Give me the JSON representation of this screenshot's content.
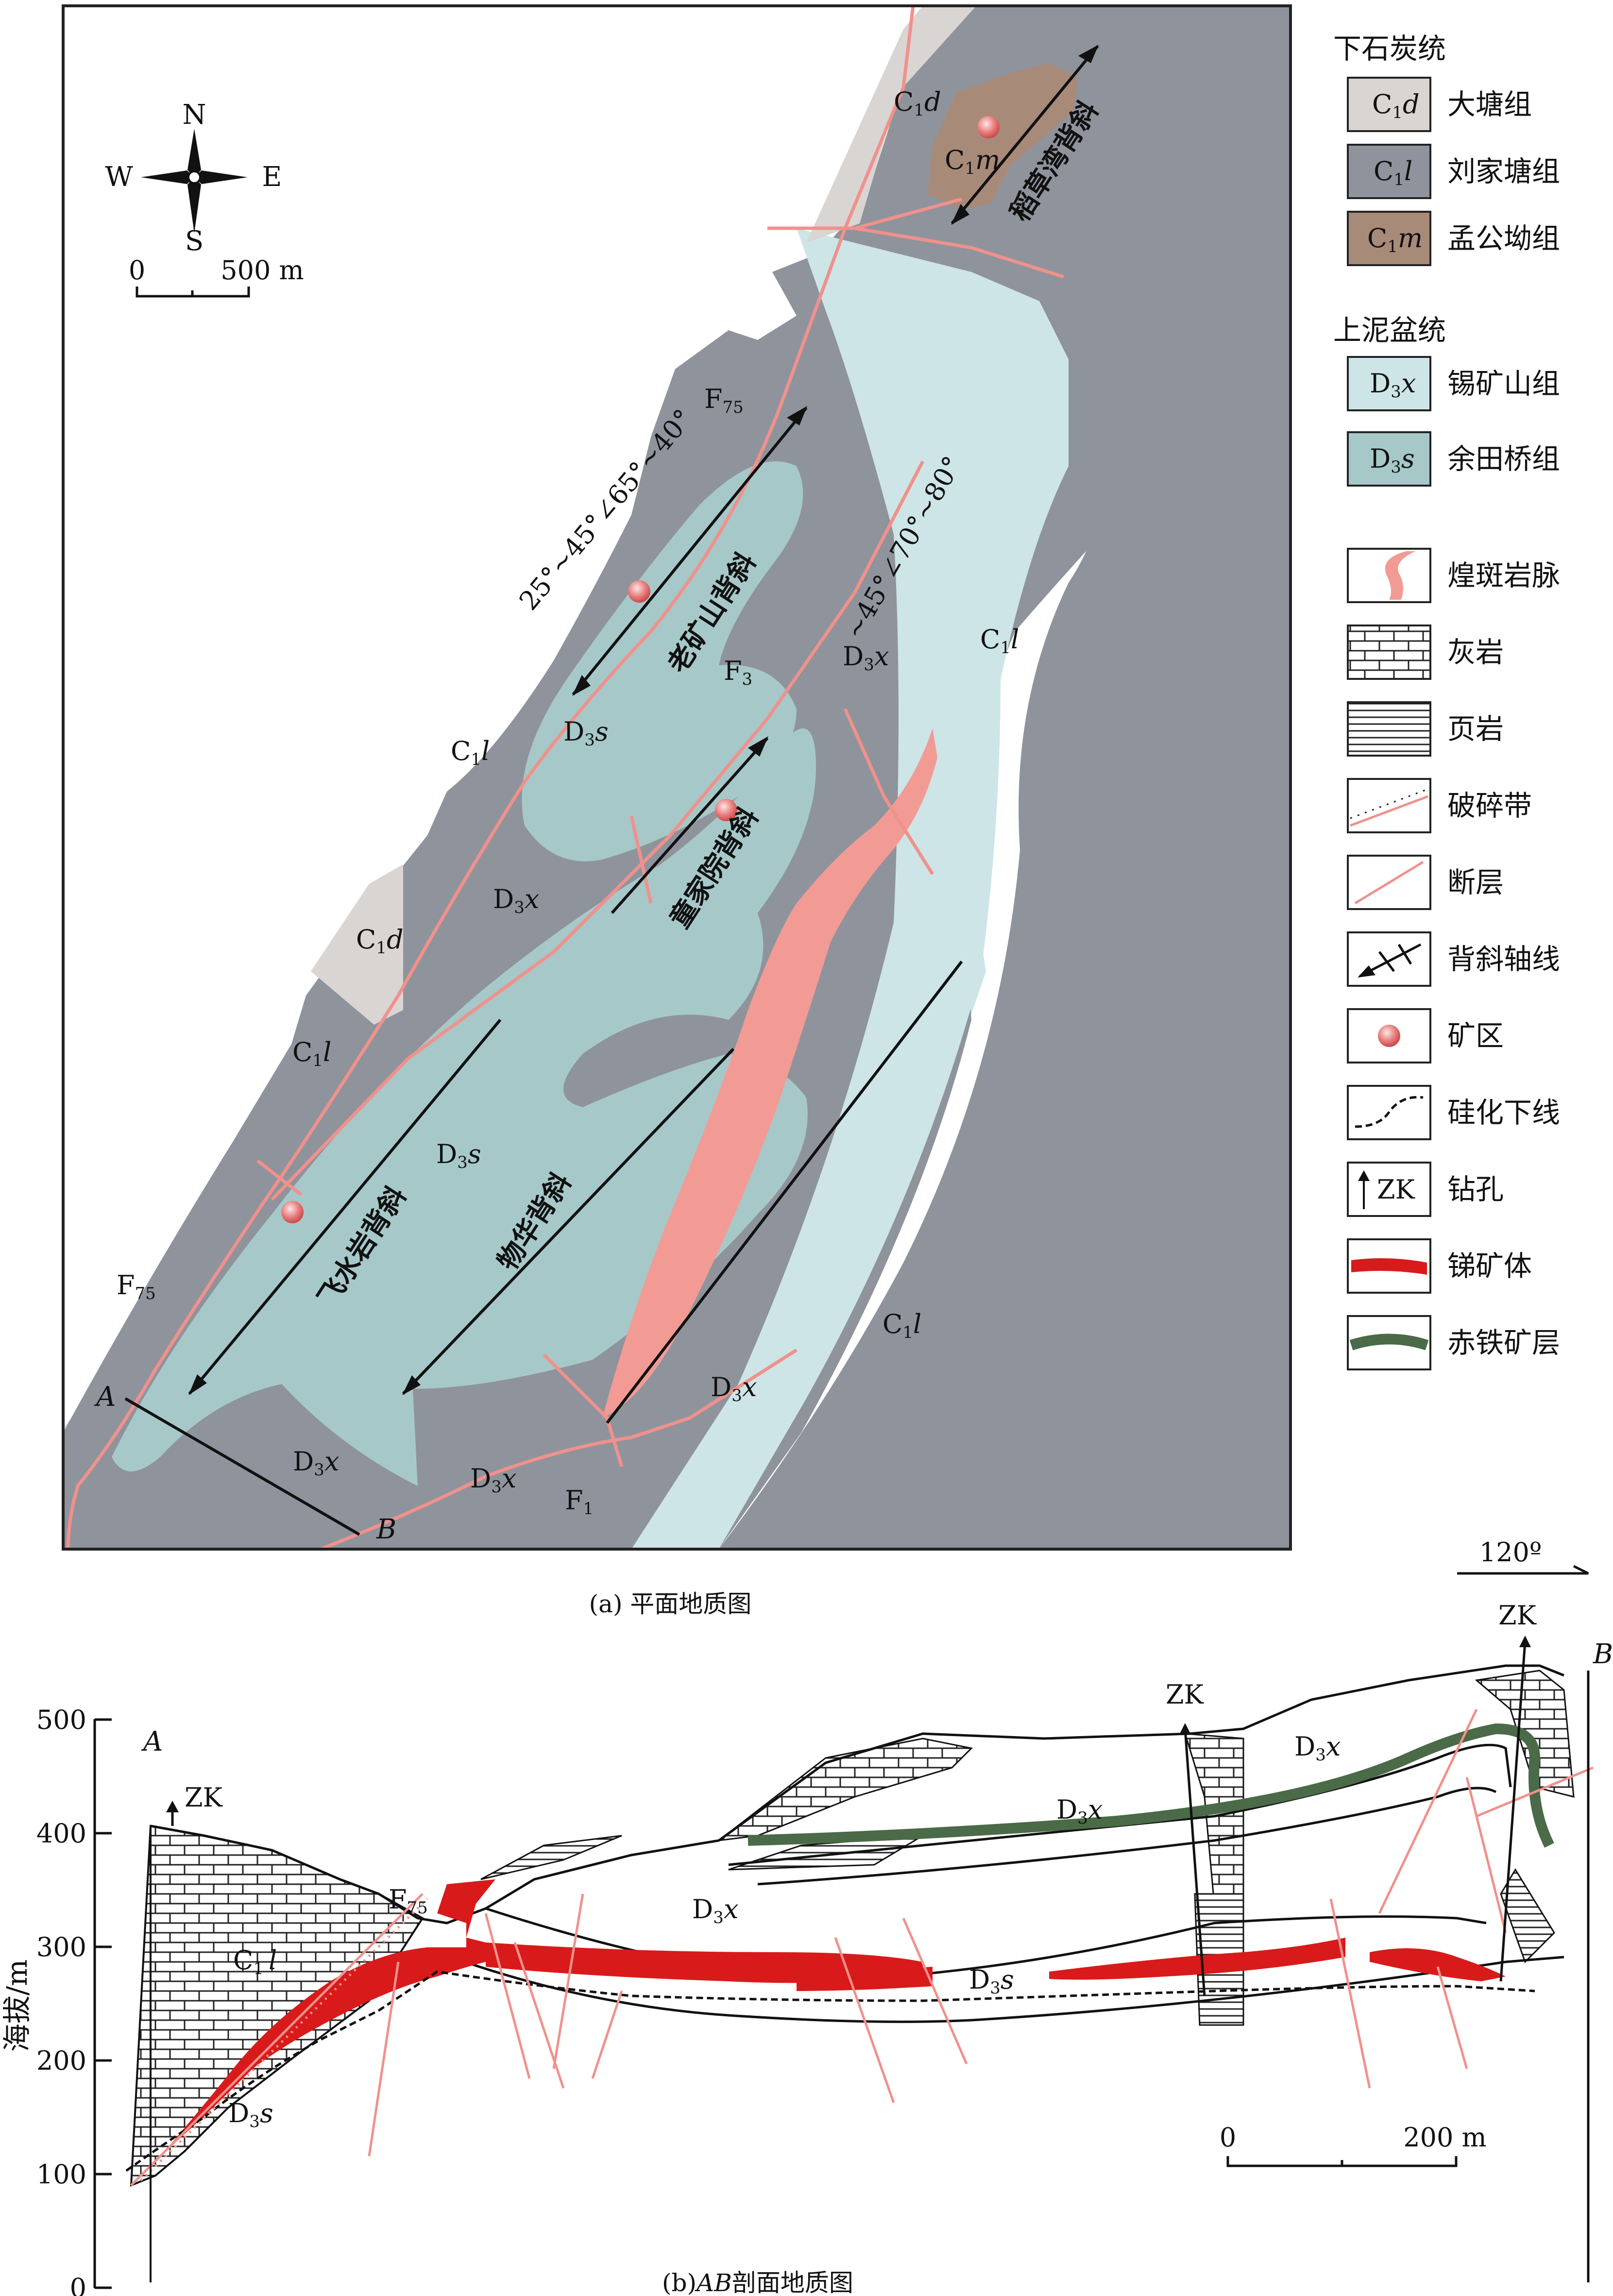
{
  "legend": {
    "group_lower_carboniferous": "下石炭统",
    "group_upper_devonian": "上泥盆统",
    "items": [
      {
        "code_main": "C",
        "code_sub": "1",
        "code_italic": "d",
        "label": "大塘组",
        "color": "#d9d5d3"
      },
      {
        "code_main": "C",
        "code_sub": "1",
        "code_italic": "l",
        "label": "刘家塘组",
        "color": "#8f939c"
      },
      {
        "code_main": "C",
        "code_sub": "1",
        "code_italic": "m",
        "label": "孟公坳组",
        "color": "#a88a78"
      },
      {
        "code_main": "D",
        "code_sub": "3",
        "code_italic": "x",
        "label": "锡矿山组",
        "color": "#cde5e7"
      },
      {
        "code_main": "D",
        "code_sub": "3",
        "code_italic": "s",
        "label": "余田桥组",
        "color": "#a6c8c9"
      }
    ],
    "symbols": [
      {
        "label": "煌斑岩脉",
        "icon": "lamprophyre-dike-icon"
      },
      {
        "label": "灰岩",
        "icon": "limestone-icon"
      },
      {
        "label": "页岩",
        "icon": "shale-icon"
      },
      {
        "label": "破碎带",
        "icon": "fracture-zone-icon"
      },
      {
        "label": "断层",
        "icon": "fault-icon"
      },
      {
        "label": "背斜轴线",
        "icon": "anticline-axis-icon"
      },
      {
        "label": "矿区",
        "icon": "mining-area-icon"
      },
      {
        "label": "硅化下线",
        "icon": "silicification-line-icon"
      },
      {
        "label": "钻孔",
        "icon": "borehole-icon",
        "text": "ZK"
      },
      {
        "label": "锑矿体",
        "icon": "antimony-orebody-icon",
        "color": "#d91a1a"
      },
      {
        "label": "赤铁矿层",
        "icon": "hematite-layer-icon",
        "color": "#4a6a48"
      }
    ]
  },
  "map": {
    "compass": {
      "n": "N",
      "s": "S",
      "e": "E",
      "w": "W"
    },
    "scale": {
      "zero": "0",
      "value": "500 m"
    },
    "anticlines": [
      "稻草湾背斜",
      "老矿山背斜",
      "童家院背斜",
      "飞水岩背斜",
      "物华背斜"
    ],
    "faults": {
      "f75_sub": "75",
      "f3_sub": "3",
      "f1_sub": "1",
      "f_main": "F"
    },
    "attitudes": {
      "upper": "25°~45°∠65°~40°",
      "middle": "~45°∠70°~80°"
    },
    "section_ends": {
      "a": "A",
      "b": "B"
    },
    "caption": "(a) 平面地质图",
    "orientation": "120º"
  },
  "section": {
    "y_axis_title": "海拔/m",
    "y_ticks": [
      "500",
      "400",
      "300",
      "200",
      "100",
      "0"
    ],
    "borehole_label": "ZK",
    "unit_labels": {
      "d3x": "D",
      "d3s": "D",
      "c1l": "C"
    },
    "scale": {
      "zero": "0",
      "value": "200 m"
    },
    "caption_prefix": "(b)",
    "caption_italic": "AB",
    "caption_suffix": "剖面地质图"
  }
}
